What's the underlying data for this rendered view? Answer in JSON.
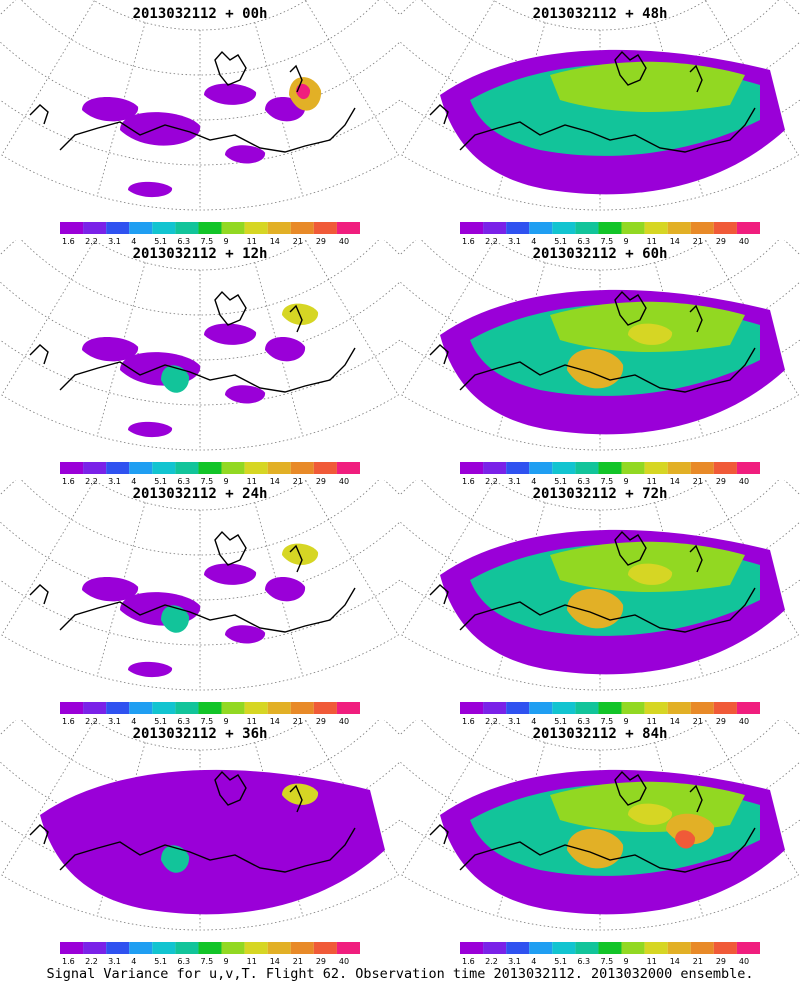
{
  "colorbar": {
    "labels": [
      "1.6",
      "2.2",
      "3.1",
      "4",
      "5.1",
      "6.3",
      "7.5",
      "9",
      "11",
      "14",
      "21",
      "29",
      "40"
    ],
    "colors": [
      "#9a00d8",
      "#7a22e8",
      "#2f52f0",
      "#1f9ef2",
      "#12c4d0",
      "#12c49a",
      "#12c428",
      "#92d822",
      "#d6d624",
      "#e2b026",
      "#e88a28",
      "#f05a38",
      "#f01e7e"
    ]
  },
  "panels": [
    {
      "title": "2013032112 + 00h",
      "level": 0
    },
    {
      "title": "2013032112 + 48h",
      "level": 3
    },
    {
      "title": "2013032112 + 12h",
      "level": 1
    },
    {
      "title": "2013032112 + 60h",
      "level": 4
    },
    {
      "title": "2013032112 + 24h",
      "level": 1
    },
    {
      "title": "2013032112 + 72h",
      "level": 4
    },
    {
      "title": "2013032112 + 36h",
      "level": 2
    },
    {
      "title": "2013032112 + 84h",
      "level": 5
    }
  ],
  "caption": "Signal Variance for u,v,T. Flight 62. Observation time 2013032112. 2013032000 ensemble."
}
